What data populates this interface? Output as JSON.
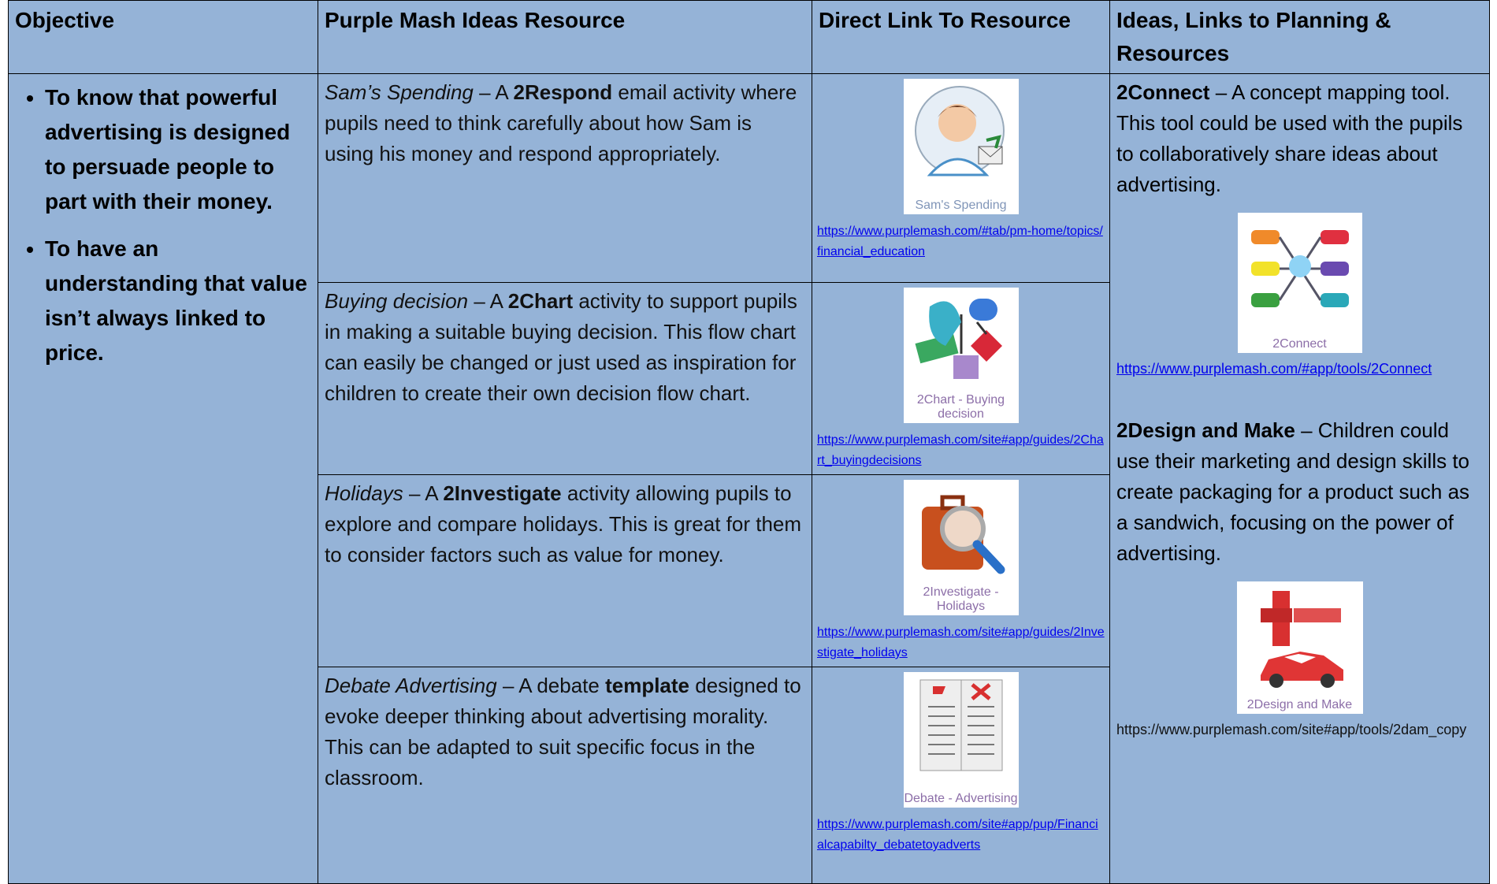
{
  "header": [
    "Objective",
    "Purple Mash Ideas Resource",
    "Direct Link To Resource",
    "Ideas, Links to Planning & Resources"
  ],
  "objectives": [
    "To know that powerful advertising is designed to persuade people to part with their money.",
    "To have an understanding that value isn’t always linked to price."
  ],
  "resources": [
    {
      "title": "Sam’s Spending",
      "lead": "– A",
      "app": "2Respond",
      "rest": "email activity where pupils need to think carefully about how Sam is using his money and respond appropriately.",
      "caption": "Sam's Spending",
      "link": "https://www.purplemash.com/#tab/pm-home/topics/financial_education"
    },
    {
      "title": "Buying decision",
      "lead": "– A",
      "app": "2Chart",
      "rest": "activity to support pupils in making a suitable buying decision. This flow chart can easily be changed or just used as inspiration for children to create their own decision flow chart.",
      "caption": "2Chart - Buying decision",
      "link": "https://www.purplemash.com/site#app/guides/2Chart_buyingdecisions"
    },
    {
      "title": "Holidays",
      "lead": "– A",
      "app": "2Investigate",
      "rest": "activity allowing pupils to explore and compare holidays. This is great for them to consider factors such as value for money.",
      "caption": "2Investigate - Holidays",
      "link": "https://www.purplemash.com/site#app/guides/2Investigate_holidays"
    },
    {
      "title": "Debate Advertising",
      "lead": "– A debate",
      "app": "template",
      "rest": "designed to evoke deeper thinking about advertising morality. This can be adapted to suit specific focus in the classroom.",
      "caption": "Debate - Advertising",
      "link": "https://www.purplemash.com/site#app/pup/Financialcapabilty_debatetoyadverts"
    }
  ],
  "ideas": [
    {
      "name": "2Connect",
      "text": "– A concept mapping tool. This tool could be used with the pupils to collaboratively share ideas about advertising.",
      "caption": "2Connect",
      "link": "https://www.purplemash.com/#app/tools/2Connect"
    },
    {
      "name": "2Design and Make",
      "text": "– Children could use their marketing and design skills to create packaging for a product such as a sandwich, focusing on the power of advertising.",
      "caption": "2Design and Make",
      "link": "https://www.purplemash.com/site#app/tools/2dam_copy"
    }
  ]
}
